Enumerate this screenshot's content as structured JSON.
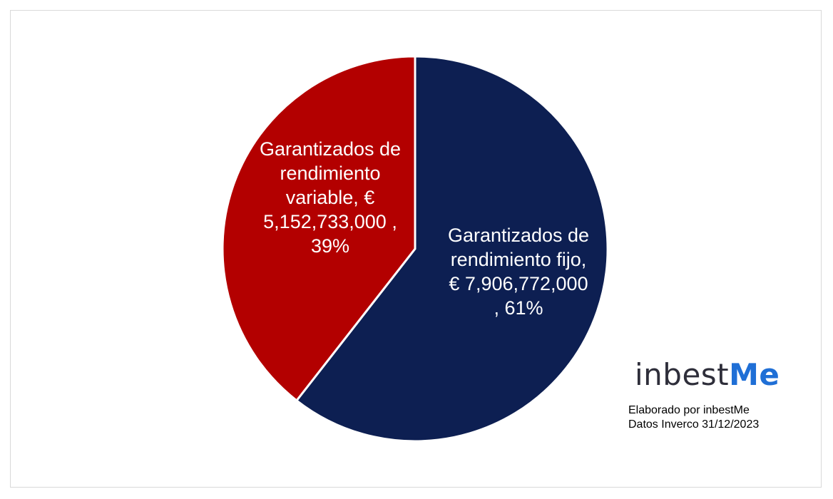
{
  "chart_data": {
    "type": "pie",
    "slices": [
      {
        "name": "Garantizados de rendimiento fijo",
        "value": 7906772000,
        "percent": 61,
        "color": "#0d1f52",
        "label_lines": [
          "Garantizados de",
          "rendimiento fijo,",
          "€ 7,906,772,000",
          ", 61%"
        ]
      },
      {
        "name": "Garantizados de rendimiento variable",
        "value": 5152733000,
        "percent": 39,
        "color": "#b30000",
        "label_lines": [
          "Garantizados de",
          "rendimiento",
          "variable,  €",
          "5,152,733,000 ,",
          "39%"
        ]
      }
    ],
    "legend": "none"
  },
  "branding": {
    "logo_prefix": "inbest",
    "logo_accent": "Me",
    "accent_color": "#1f6fd6",
    "credit_line1": "Elaborado por inbestMe",
    "credit_line2": "Datos Inverco 31/12/2023"
  }
}
